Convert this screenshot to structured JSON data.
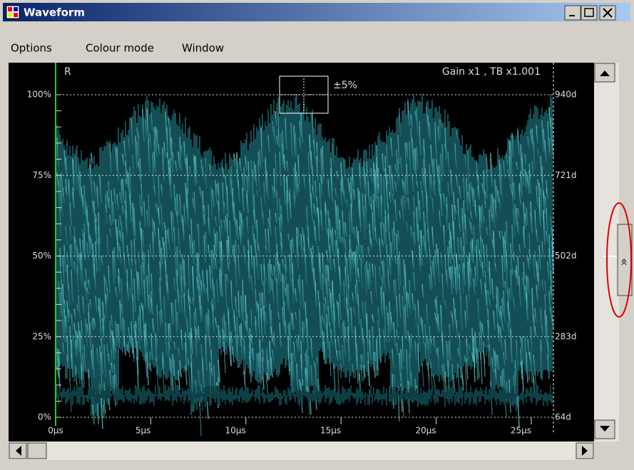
{
  "window": {
    "title": "Waveform"
  },
  "menu": {
    "items": [
      "Options",
      "Colour mode",
      "Window"
    ]
  },
  "scope": {
    "channel": "R",
    "info": "Gain x1 , TB x1.001",
    "zoom_label": "±5%",
    "left_labels": [
      "100%",
      "75%",
      "50%",
      "25%",
      "0%"
    ],
    "right_labels": [
      "940d",
      "721d",
      "502d",
      "283d",
      "64d"
    ],
    "time_labels": [
      "0µs",
      "5µs",
      "10µs",
      "15µs",
      "20µs",
      "25µs"
    ]
  }
}
